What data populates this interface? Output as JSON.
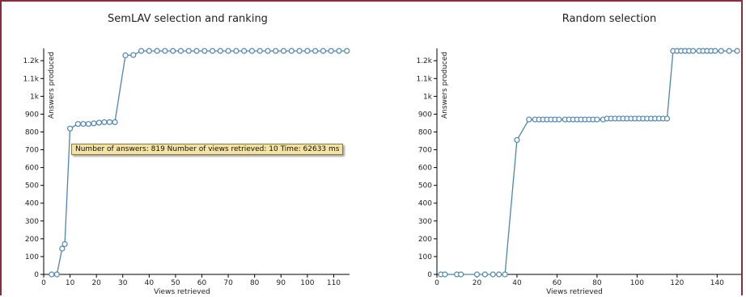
{
  "tooltip": {
    "text": "Number of answers: 819 Number of views retrieved: 10 Time: 62633 ms"
  },
  "chart_data": [
    {
      "type": "line",
      "title": "SemLAV selection and ranking",
      "xlabel": "Views retrieved",
      "ylabel": "Answers produced",
      "xlim": [
        0,
        116
      ],
      "ylim": [
        0,
        1260
      ],
      "xticks": [
        0,
        10,
        20,
        30,
        40,
        50,
        60,
        70,
        80,
        90,
        100,
        110
      ],
      "yticks": [
        0,
        100,
        200,
        300,
        400,
        500,
        600,
        700,
        800,
        900,
        1000,
        1100,
        1200
      ],
      "ytick_labels": [
        "0",
        "100",
        "200",
        "300",
        "400",
        "500",
        "600",
        "700",
        "800",
        "900",
        "1k",
        "1.1k",
        "1.2k"
      ],
      "color": "#4a86b8",
      "series": [
        {
          "x": [
            3,
            5,
            7,
            8,
            10,
            13,
            15,
            17,
            19,
            21,
            23,
            25,
            27,
            31,
            34,
            37,
            40,
            43,
            46,
            49,
            52,
            55,
            58,
            61,
            64,
            67,
            70,
            73,
            76,
            79,
            82,
            85,
            88,
            91,
            94,
            97,
            100,
            103,
            106,
            109,
            112,
            115
          ],
          "y": [
            0,
            0,
            145,
            170,
            819,
            845,
            845,
            845,
            848,
            852,
            855,
            855,
            855,
            1230,
            1232,
            1255,
            1255,
            1255,
            1255,
            1255,
            1255,
            1255,
            1255,
            1255,
            1255,
            1255,
            1255,
            1255,
            1255,
            1255,
            1255,
            1255,
            1255,
            1255,
            1255,
            1255,
            1255,
            1255,
            1255,
            1255,
            1255,
            1255
          ]
        }
      ]
    },
    {
      "type": "line",
      "title": "Random selection",
      "xlabel": "Views retrieved",
      "ylabel": "Answers produced",
      "xlim": [
        0,
        152
      ],
      "ylim": [
        0,
        1260
      ],
      "xticks": [
        0,
        20,
        40,
        60,
        80,
        100,
        120,
        140
      ],
      "yticks": [
        0,
        100,
        200,
        300,
        400,
        500,
        600,
        700,
        800,
        900,
        1000,
        1100,
        1200
      ],
      "ytick_labels": [
        "0",
        "100",
        "200",
        "300",
        "400",
        "500",
        "600",
        "700",
        "800",
        "900",
        "1k",
        "1.1k",
        "1.2k"
      ],
      "color": "#4a86b8",
      "series": [
        {
          "x": [
            2,
            4,
            10,
            12,
            20,
            24,
            28,
            31,
            34,
            40,
            46,
            49,
            51,
            53,
            55,
            57,
            59,
            61,
            64,
            66,
            68,
            70,
            72,
            74,
            76,
            78,
            80,
            83,
            85,
            87,
            89,
            91,
            93,
            95,
            97,
            99,
            101,
            103,
            105,
            107,
            109,
            111,
            113,
            115,
            118,
            120,
            122,
            124,
            126,
            128,
            131,
            133,
            135,
            137,
            139,
            142,
            146,
            150
          ],
          "y": [
            0,
            0,
            0,
            0,
            0,
            0,
            0,
            0,
            0,
            755,
            870,
            870,
            870,
            870,
            870,
            870,
            870,
            870,
            870,
            870,
            870,
            870,
            870,
            870,
            870,
            870,
            870,
            870,
            875,
            875,
            875,
            875,
            875,
            875,
            875,
            875,
            875,
            875,
            875,
            875,
            875,
            875,
            875,
            875,
            1255,
            1255,
            1255,
            1255,
            1255,
            1255,
            1255,
            1255,
            1255,
            1255,
            1255,
            1255,
            1255,
            1255
          ]
        }
      ]
    }
  ]
}
